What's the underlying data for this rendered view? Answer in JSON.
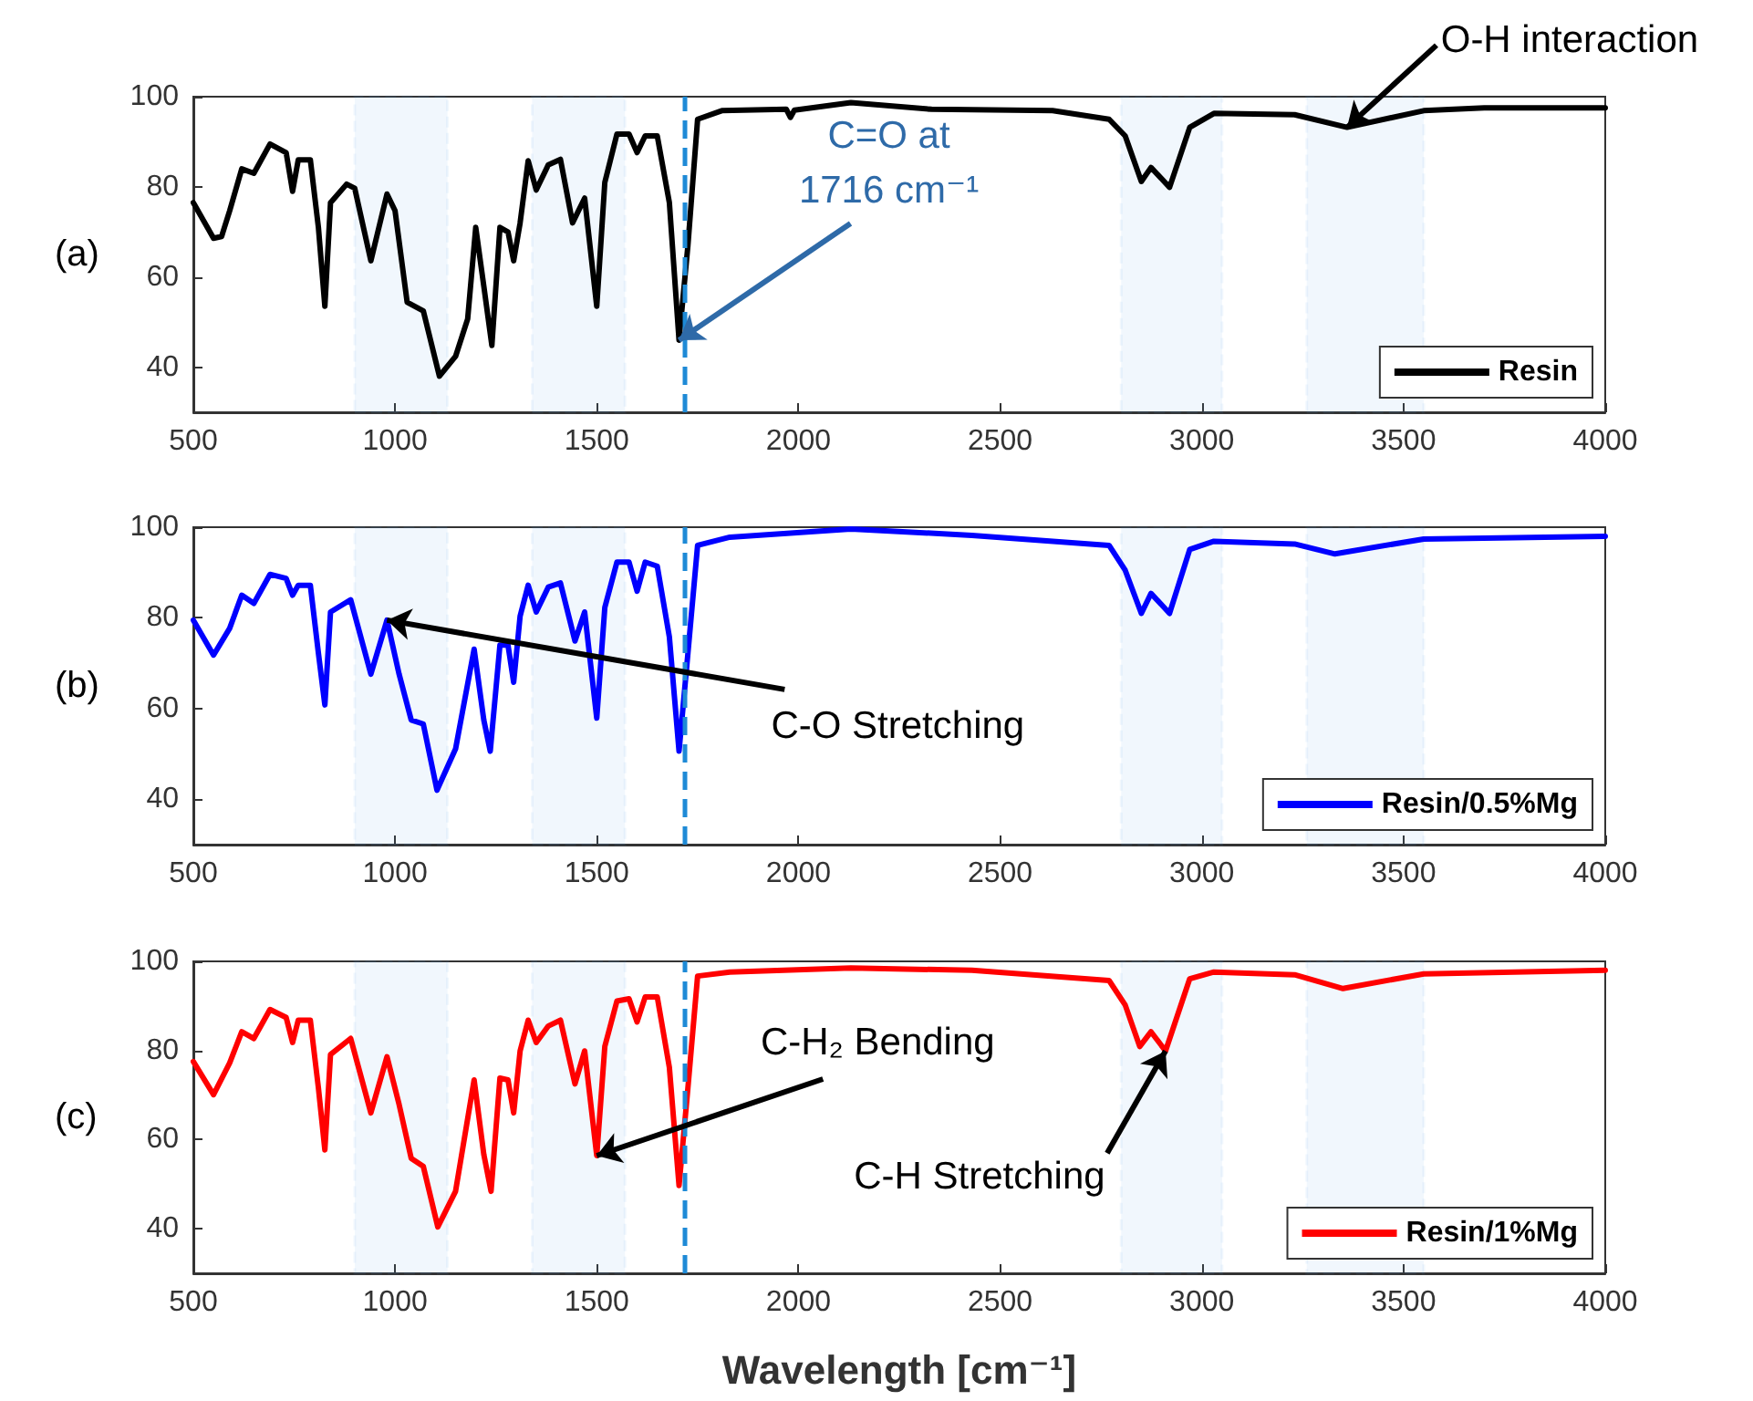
{
  "chart_data": [
    {
      "type": "line",
      "xlim": [
        500,
        4000
      ],
      "xticks": [
        500,
        1000,
        1500,
        2000,
        2500,
        3000,
        3500,
        4000
      ],
      "ylim": [
        30,
        100
      ],
      "yticks": [
        40,
        60,
        80,
        100
      ],
      "grid": false,
      "legend": "bottom right",
      "marker": "none",
      "series": [
        {
          "name": "Resin",
          "color": "#000000",
          "x": [
            500,
            550,
            570,
            590,
            620,
            650,
            690,
            730,
            746,
            760,
            790,
            810,
            826,
            840,
            880,
            900,
            940,
            980,
            1000,
            1030,
            1070,
            1110,
            1150,
            1180,
            1200,
            1220,
            1240,
            1260,
            1280,
            1294,
            1310,
            1330,
            1350,
            1380,
            1410,
            1440,
            1470,
            1500,
            1520,
            1550,
            1580,
            1600,
            1620,
            1650,
            1680,
            1704,
            1726,
            1750,
            1810,
            1970,
            1980,
            1990,
            2130,
            2330,
            2630,
            2770,
            2810,
            2850,
            2874,
            2920,
            2970,
            3030,
            3230,
            3360,
            3550,
            3700,
            4000
          ],
          "values": [
            76.5,
            68.6,
            69,
            74.7,
            84,
            83,
            89.5,
            87.6,
            79,
            86,
            86,
            71,
            53.5,
            76.5,
            80.6,
            79.7,
            63.6,
            78.4,
            74.7,
            54.4,
            52.5,
            38,
            42.4,
            50.7,
            71,
            58,
            44.8,
            71,
            70,
            63.6,
            72,
            85.8,
            79.3,
            84.9,
            86.1,
            72,
            77.5,
            53.5,
            81,
            91.7,
            91.7,
            87.6,
            91.3,
            91.3,
            76.5,
            46,
            67,
            95,
            96.9,
            97.2,
            95.4,
            97,
            98.7,
            97.2,
            96.9,
            95,
            91.3,
            81.2,
            84.3,
            79.9,
            93.2,
            96.3,
            96,
            93.2,
            96.9,
            97.5,
            97.5
          ]
        }
      ],
      "bands": [
        {
          "axis": "x",
          "from": 900,
          "to": 1130,
          "color": "#4a9ee0"
        },
        {
          "axis": "x",
          "from": 1340,
          "to": 1570,
          "color": "#4a9ee0"
        },
        {
          "axis": "x",
          "from": 2800,
          "to": 3050,
          "color": "#4a9ee0"
        },
        {
          "axis": "x",
          "from": 3260,
          "to": 3550,
          "color": "#4a9ee0"
        }
      ],
      "ref_lines": [
        {
          "axis": "x",
          "value": 1716,
          "color": "#1e8ad6",
          "line_style": "dashed"
        }
      ],
      "annotations": [
        "(a)",
        {
          "text": "C=O at 1716 cm⁻¹",
          "x": 1704,
          "y": 46
        },
        {
          "text": "O-H interaction",
          "x": 3360,
          "y": 93.2
        }
      ]
    },
    {
      "type": "line",
      "xlim": [
        500,
        4000
      ],
      "xticks": [
        500,
        1000,
        1500,
        2000,
        2500,
        3000,
        3500,
        4000
      ],
      "ylim": [
        30,
        100
      ],
      "yticks": [
        40,
        60,
        80,
        100
      ],
      "grid": false,
      "legend": "bottom right",
      "marker": "none",
      "series": [
        {
          "name": "Resin/0.5%Mg",
          "color": "#0000ff",
          "x": [
            500,
            550,
            590,
            620,
            650,
            690,
            730,
            746,
            760,
            790,
            810,
            826,
            840,
            890,
            940,
            980,
            1010,
            1040,
            1070,
            1104,
            1150,
            1196,
            1220,
            1236,
            1260,
            1280,
            1294,
            1310,
            1330,
            1350,
            1380,
            1410,
            1446,
            1470,
            1500,
            1520,
            1550,
            1580,
            1600,
            1620,
            1650,
            1680,
            1704,
            1726,
            1750,
            1830,
            2130,
            2430,
            2770,
            2810,
            2850,
            2874,
            2920,
            2970,
            3030,
            3230,
            3330,
            3550,
            4000
          ],
          "values": [
            79.5,
            71.8,
            77.7,
            85,
            83.2,
            89.6,
            88.7,
            85,
            87.2,
            87.2,
            72.2,
            60.8,
            81.3,
            84,
            67.6,
            79.5,
            67.6,
            57.5,
            56.6,
            42,
            51.1,
            73.1,
            57.5,
            50.6,
            74,
            74,
            65.8,
            80.4,
            87.2,
            81.3,
            86.8,
            87.7,
            74.9,
            81.3,
            57.9,
            82.3,
            92.3,
            92.3,
            85.9,
            92.3,
            91.4,
            75.8,
            50.6,
            72.2,
            96,
            97.8,
            99.6,
            98.2,
            96,
            90.5,
            81,
            85.4,
            81,
            95.1,
            96.9,
            96.3,
            94.1,
            97.4,
            98
          ]
        }
      ],
      "bands": [
        {
          "axis": "x",
          "from": 900,
          "to": 1130,
          "color": "#4a9ee0"
        },
        {
          "axis": "x",
          "from": 1340,
          "to": 1570,
          "color": "#4a9ee0"
        },
        {
          "axis": "x",
          "from": 2800,
          "to": 3050,
          "color": "#4a9ee0"
        },
        {
          "axis": "x",
          "from": 3260,
          "to": 3550,
          "color": "#4a9ee0"
        }
      ],
      "ref_lines": [
        {
          "axis": "x",
          "value": 1716,
          "color": "#1e8ad6",
          "line_style": "dashed"
        }
      ],
      "annotations": [
        "(b)",
        {
          "text": "C-O Stretching",
          "x": 980,
          "y": 79.5
        }
      ]
    },
    {
      "type": "line",
      "xlabel": "Wavelength [cm⁻¹]",
      "xlim": [
        500,
        4000
      ],
      "xticks": [
        500,
        1000,
        1500,
        2000,
        2500,
        3000,
        3500,
        4000
      ],
      "ylim": [
        30,
        100
      ],
      "yticks": [
        40,
        60,
        80,
        100
      ],
      "grid": false,
      "legend": "bottom right",
      "marker": "none",
      "series": [
        {
          "name": "Resin/1%Mg",
          "color": "#ff0000",
          "x": [
            500,
            550,
            590,
            620,
            650,
            690,
            730,
            746,
            760,
            790,
            810,
            826,
            840,
            890,
            940,
            980,
            1010,
            1040,
            1070,
            1106,
            1150,
            1196,
            1220,
            1238,
            1260,
            1280,
            1294,
            1310,
            1330,
            1350,
            1380,
            1410,
            1446,
            1470,
            1500,
            1520,
            1550,
            1580,
            1600,
            1620,
            1650,
            1680,
            1704,
            1726,
            1750,
            1830,
            2130,
            2430,
            2770,
            2810,
            2846,
            2874,
            2910,
            2970,
            3030,
            3230,
            3350,
            3550,
            4000
          ],
          "values": [
            77.5,
            70.1,
            77.2,
            84.2,
            82.7,
            89.2,
            87.4,
            81.8,
            86.8,
            86.8,
            71.6,
            57.7,
            79.1,
            82.7,
            66,
            78.6,
            67.9,
            55.8,
            54,
            40.4,
            48.4,
            73.4,
            56.7,
            48.4,
            73.8,
            73.4,
            66,
            79.9,
            86.8,
            81.8,
            85.5,
            86.8,
            72.5,
            79.9,
            56.4,
            80.9,
            91.1,
            91.6,
            86.4,
            92,
            92,
            76.2,
            49.7,
            71.6,
            96.7,
            97.6,
            98.5,
            98,
            95.7,
            90.2,
            80.9,
            84.2,
            79.9,
            96.1,
            97.6,
            97,
            93.9,
            97.2,
            98
          ]
        }
      ],
      "bands": [
        {
          "axis": "x",
          "from": 900,
          "to": 1130,
          "color": "#4a9ee0"
        },
        {
          "axis": "x",
          "from": 1340,
          "to": 1570,
          "color": "#4a9ee0"
        },
        {
          "axis": "x",
          "from": 2800,
          "to": 3050,
          "color": "#4a9ee0"
        },
        {
          "axis": "x",
          "from": 3260,
          "to": 3550,
          "color": "#4a9ee0"
        }
      ],
      "ref_lines": [
        {
          "axis": "x",
          "value": 1716,
          "color": "#1e8ad6",
          "line_style": "dashed"
        }
      ],
      "annotations": [
        "(c)",
        {
          "text": "C-H₂ Bending",
          "x": 1500,
          "y": 56.4
        },
        {
          "text": "C-H Stretching",
          "x": 2910,
          "y": 79.9
        }
      ]
    }
  ]
}
